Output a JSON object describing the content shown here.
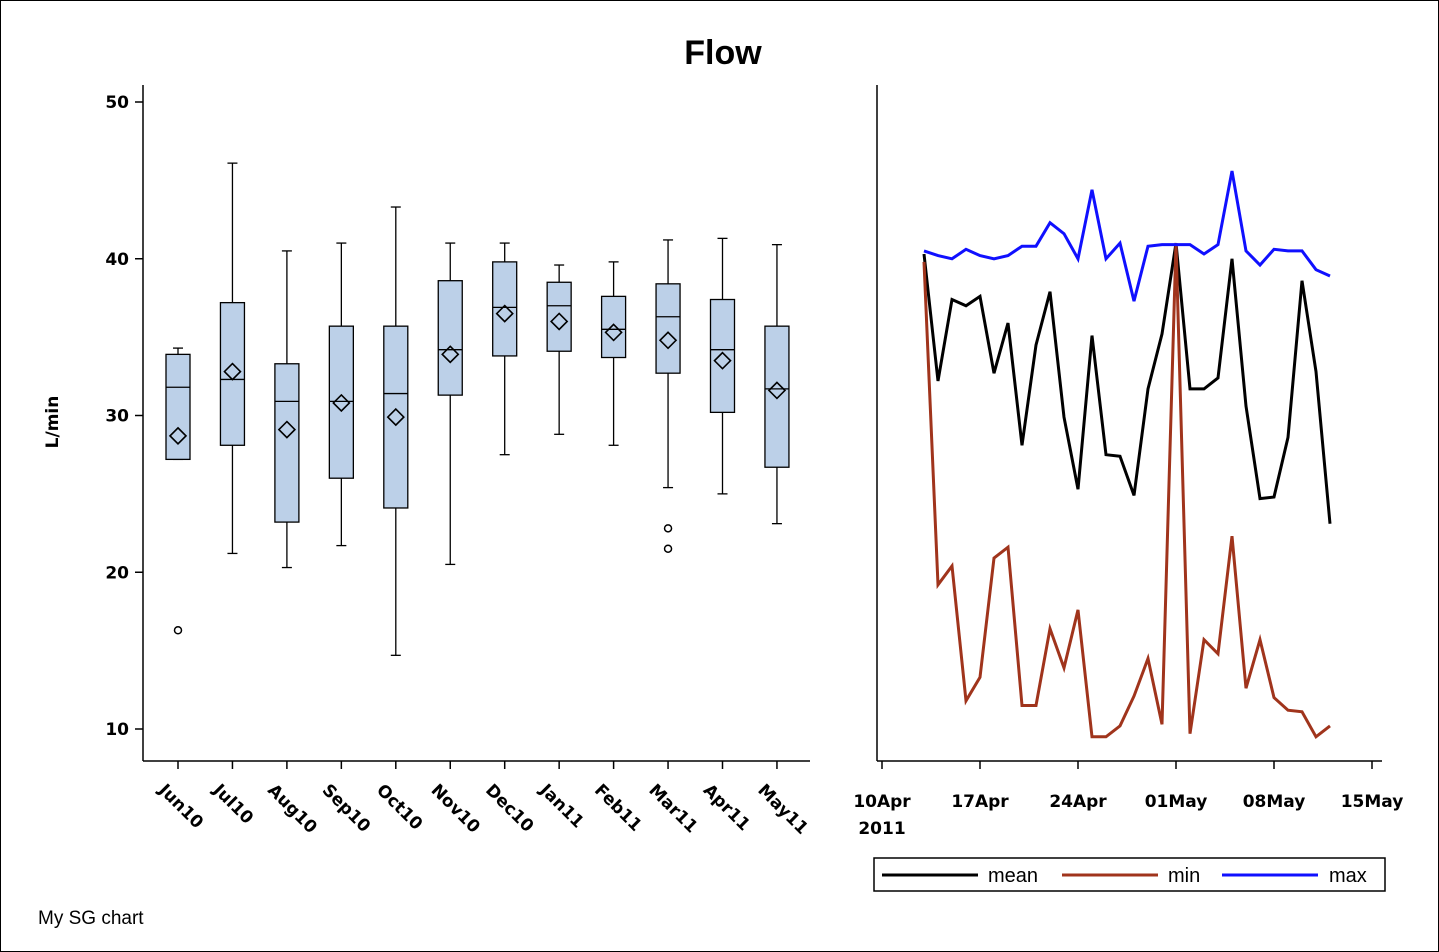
{
  "title": "Flow",
  "footnote": "My SG chart",
  "colors": {
    "box_fill": "#bcd0e8",
    "mean": "#000000",
    "min": "#a0341c",
    "max": "#1010ff"
  },
  "chart_data": [
    {
      "type": "box",
      "ylabel": "L/min",
      "ylim": [
        8,
        51
      ],
      "yticks": [
        "10",
        "20",
        "30",
        "40",
        "50"
      ],
      "categories": [
        "Jun10",
        "Jul10",
        "Aug10",
        "Sep10",
        "Oct10",
        "Nov10",
        "Dec10",
        "Jan11",
        "Feb11",
        "Mar11",
        "Apr11",
        "May11"
      ],
      "boxes": [
        {
          "min": 27.2,
          "q1": 27.2,
          "median": 31.8,
          "q3": 33.9,
          "max": 34.3,
          "mean": 28.7,
          "outliers": [
            16.3
          ]
        },
        {
          "min": 21.2,
          "q1": 28.1,
          "median": 32.3,
          "q3": 37.2,
          "max": 46.1,
          "mean": 32.8,
          "outliers": []
        },
        {
          "min": 20.3,
          "q1": 23.2,
          "median": 30.9,
          "q3": 33.3,
          "max": 40.5,
          "mean": 29.1,
          "outliers": []
        },
        {
          "min": 21.7,
          "q1": 26.0,
          "median": 30.9,
          "q3": 35.7,
          "max": 41.0,
          "mean": 30.8,
          "outliers": []
        },
        {
          "min": 14.7,
          "q1": 24.1,
          "median": 31.4,
          "q3": 35.7,
          "max": 43.3,
          "mean": 29.9,
          "outliers": []
        },
        {
          "min": 20.5,
          "q1": 31.3,
          "median": 34.2,
          "q3": 38.6,
          "max": 41.0,
          "mean": 33.9,
          "outliers": []
        },
        {
          "min": 27.5,
          "q1": 33.8,
          "median": 36.9,
          "q3": 39.8,
          "max": 41.0,
          "mean": 36.5,
          "outliers": []
        },
        {
          "min": 28.8,
          "q1": 34.1,
          "median": 37.0,
          "q3": 38.5,
          "max": 39.6,
          "mean": 36.0,
          "outliers": []
        },
        {
          "min": 28.1,
          "q1": 33.7,
          "median": 35.5,
          "q3": 37.6,
          "max": 39.8,
          "mean": 35.3,
          "outliers": []
        },
        {
          "min": 25.4,
          "q1": 32.7,
          "median": 36.3,
          "q3": 38.4,
          "max": 41.2,
          "mean": 34.8,
          "outliers": [
            22.8,
            21.5
          ]
        },
        {
          "min": 25.0,
          "q1": 30.2,
          "median": 34.2,
          "q3": 37.4,
          "max": 41.3,
          "mean": 33.5,
          "outliers": []
        },
        {
          "min": 23.1,
          "q1": 26.7,
          "median": 31.7,
          "q3": 35.7,
          "max": 40.9,
          "mean": 31.6,
          "outliers": []
        }
      ]
    },
    {
      "type": "line",
      "x_axis": "date",
      "xlim": [
        "2011-04-09",
        "2011-05-16"
      ],
      "x_ticks": [
        {
          "date": "2011-04-10",
          "label": "10Apr",
          "sublabel": "2011"
        },
        {
          "date": "2011-04-17",
          "label": "17Apr",
          "sublabel": ""
        },
        {
          "date": "2011-04-24",
          "label": "24Apr",
          "sublabel": ""
        },
        {
          "date": "2011-05-01",
          "label": "01May",
          "sublabel": ""
        },
        {
          "date": "2011-05-08",
          "label": "08May",
          "sublabel": ""
        },
        {
          "date": "2011-05-15",
          "label": "15May",
          "sublabel": ""
        }
      ],
      "ylim": [
        8,
        51
      ],
      "dates": [
        "2011-04-13",
        "2011-04-14",
        "2011-04-15",
        "2011-04-16",
        "2011-04-17",
        "2011-04-18",
        "2011-04-19",
        "2011-04-20",
        "2011-04-21",
        "2011-04-22",
        "2011-04-23",
        "2011-04-24",
        "2011-04-25",
        "2011-04-26",
        "2011-04-27",
        "2011-04-28",
        "2011-04-29",
        "2011-04-30",
        "2011-05-01",
        "2011-05-02",
        "2011-05-03",
        "2011-05-04",
        "2011-05-05",
        "2011-05-06",
        "2011-05-07",
        "2011-05-08",
        "2011-05-09",
        "2011-05-10",
        "2011-05-11",
        "2011-05-12"
      ],
      "series": [
        {
          "name": "mean",
          "color": "#000000",
          "values": [
            40.3,
            32.2,
            37.4,
            37.0,
            37.6,
            32.7,
            35.9,
            28.1,
            34.5,
            37.9,
            29.9,
            25.3,
            35.1,
            27.5,
            27.4,
            24.9,
            31.7,
            35.2,
            41.0,
            31.7,
            31.7,
            32.4,
            40.0,
            30.6,
            24.7,
            24.8,
            28.6,
            38.6,
            32.8,
            23.1
          ]
        },
        {
          "name": "min",
          "color": "#a0341c",
          "values": [
            39.8,
            19.2,
            20.4,
            11.8,
            13.3,
            20.9,
            21.6,
            11.5,
            11.5,
            16.4,
            13.9,
            17.6,
            9.5,
            9.5,
            10.2,
            12.1,
            14.5,
            10.3,
            41.0,
            9.7,
            15.7,
            14.8,
            22.3,
            12.6,
            15.7,
            12.0,
            11.2,
            11.1,
            9.5,
            10.2
          ]
        },
        {
          "name": "max",
          "color": "#1010ff",
          "values": [
            40.5,
            40.2,
            40.0,
            40.6,
            40.2,
            40.0,
            40.2,
            40.8,
            40.8,
            42.3,
            41.6,
            40.0,
            44.4,
            40.0,
            41.0,
            37.3,
            40.8,
            40.9,
            40.9,
            40.9,
            40.3,
            40.9,
            45.6,
            40.5,
            39.6,
            40.6,
            40.5,
            40.5,
            39.3,
            38.9
          ]
        }
      ],
      "legend": {
        "position": "bottom",
        "items": [
          "mean",
          "min",
          "max"
        ]
      }
    }
  ]
}
